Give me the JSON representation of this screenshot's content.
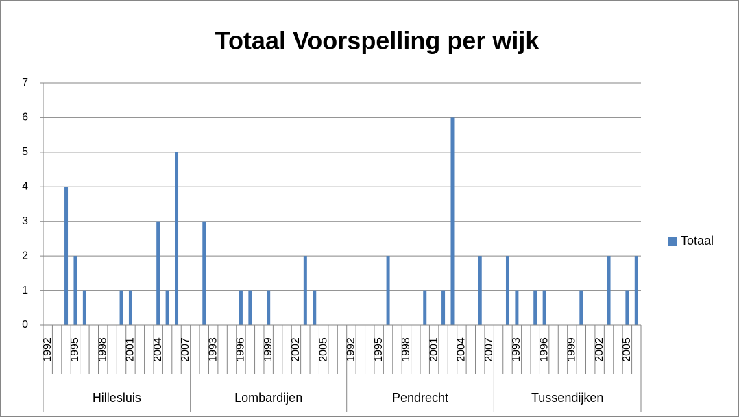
{
  "chart_data": {
    "type": "bar",
    "title": "Totaal Voorspelling per wijk",
    "groups": [
      {
        "name": "Hillesluis",
        "categories": [
          "1992",
          null,
          null,
          "1995",
          null,
          null,
          "1998",
          null,
          null,
          "2001",
          null,
          null,
          "2004",
          null,
          null,
          "2007"
        ]
      },
      {
        "name": "Lombardijen",
        "categories": [
          null,
          null,
          "1993",
          null,
          null,
          "1996",
          null,
          null,
          "1999",
          null,
          null,
          "2002",
          null,
          null,
          "2005",
          null,
          null
        ]
      },
      {
        "name": "Pendrecht",
        "categories": [
          "1992",
          null,
          null,
          "1995",
          null,
          null,
          "1998",
          null,
          null,
          "2001",
          null,
          null,
          "2004",
          null,
          null,
          "2007"
        ]
      },
      {
        "name": "Tussendijken",
        "categories": [
          null,
          null,
          "1993",
          null,
          null,
          "1996",
          null,
          null,
          "1999",
          null,
          null,
          "2002",
          null,
          null,
          "2005",
          null
        ]
      }
    ],
    "series": [
      {
        "name": "Totaal",
        "color": "#4f81bd",
        "values": [
          0,
          0,
          4,
          2,
          1,
          0,
          0,
          0,
          1,
          1,
          0,
          0,
          3,
          1,
          5,
          0,
          0,
          3,
          0,
          0,
          0,
          1,
          1,
          0,
          1,
          0,
          0,
          0,
          2,
          1,
          0,
          0,
          0,
          0,
          0,
          0,
          0,
          2,
          0,
          0,
          0,
          1,
          0,
          1,
          6,
          0,
          0,
          2,
          0,
          0,
          2,
          1,
          0,
          1,
          1,
          0,
          0,
          0,
          1,
          0,
          0,
          2,
          0,
          1,
          2
        ]
      }
    ],
    "ylim": [
      0,
      7
    ],
    "yticks": [
      0,
      1,
      2,
      3,
      4,
      5,
      6,
      7
    ],
    "grid": true,
    "legend": "right"
  }
}
